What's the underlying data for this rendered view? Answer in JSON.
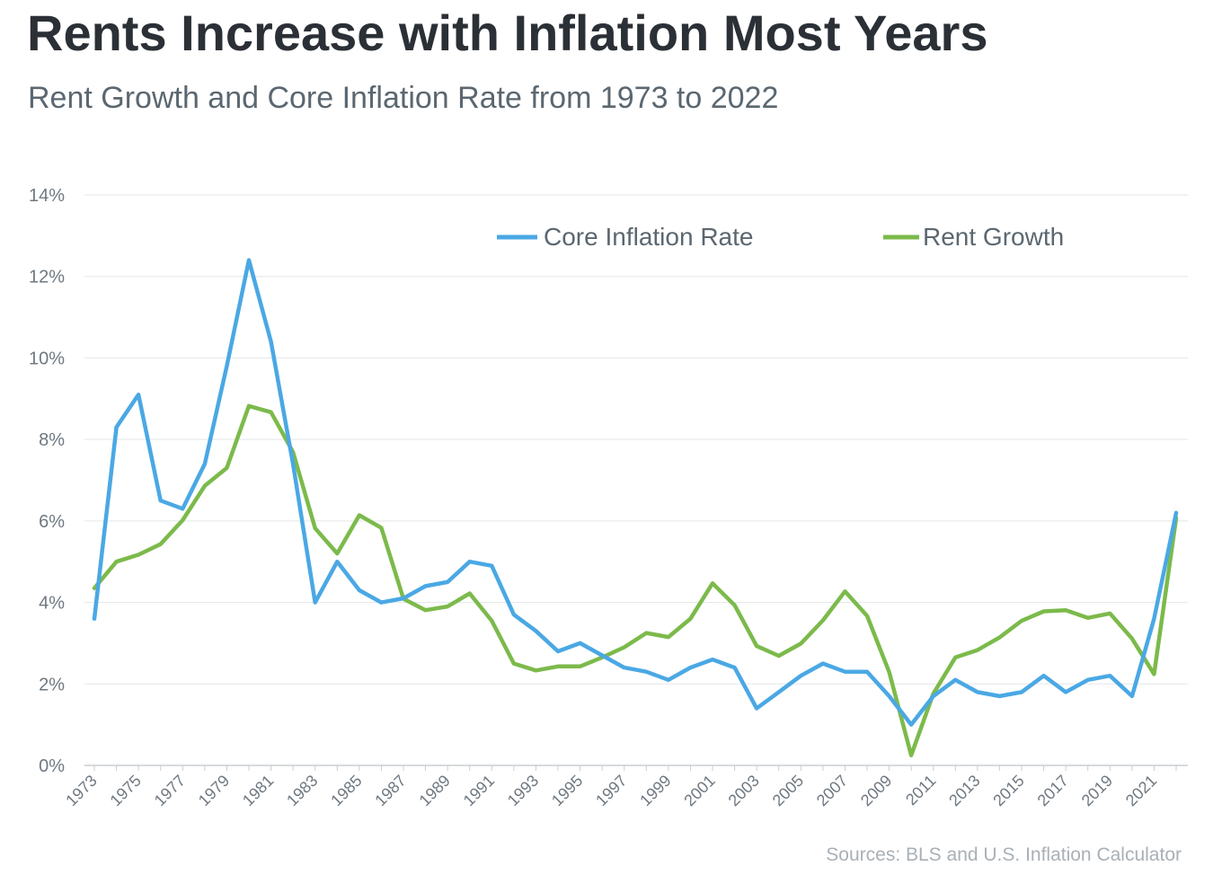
{
  "title": "Rents Increase with Inflation Most Years",
  "subtitle": "Rent Growth and Core Inflation Rate from 1973 to 2022",
  "source": "Sources: BLS and U.S. Inflation Calculator",
  "colors": {
    "core_inflation": "#4aa8e4",
    "rent_growth": "#7cba4b",
    "grid": "#e3e6e8",
    "axis": "#c9cdd1"
  },
  "chart_data": {
    "type": "line",
    "title": "Rents Increase with Inflation Most Years",
    "subtitle": "Rent Growth and Core Inflation Rate from 1973 to 2022",
    "x": [
      1973,
      1974,
      1975,
      1976,
      1977,
      1978,
      1979,
      1980,
      1981,
      1982,
      1983,
      1984,
      1985,
      1986,
      1987,
      1988,
      1989,
      1990,
      1991,
      1992,
      1993,
      1994,
      1995,
      1996,
      1997,
      1998,
      1999,
      2000,
      2001,
      2002,
      2003,
      2004,
      2005,
      2006,
      2007,
      2008,
      2009,
      2010,
      2011,
      2012,
      2013,
      2014,
      2015,
      2016,
      2017,
      2018,
      2019,
      2020,
      2021,
      2022
    ],
    "x_tick_labels": [
      "1973",
      "1975",
      "1977",
      "1979",
      "1981",
      "1983",
      "1985",
      "1987",
      "1989",
      "1991",
      "1993",
      "1995",
      "1997",
      "1999",
      "2001",
      "2003",
      "2005",
      "2007",
      "2009",
      "2011",
      "2013",
      "2015",
      "2017",
      "2019",
      "2021"
    ],
    "y_tick_labels": [
      "0%",
      "2%",
      "4%",
      "6%",
      "8%",
      "10%",
      "12%",
      "14%"
    ],
    "ylim": [
      0,
      14
    ],
    "y_unit": "%",
    "grid": true,
    "legend_position": "top-right",
    "series": [
      {
        "name": "Core Inflation Rate",
        "values": [
          3.6,
          8.3,
          9.1,
          6.5,
          6.3,
          7.4,
          9.8,
          12.4,
          10.4,
          7.4,
          4.0,
          5.0,
          4.3,
          4.0,
          4.1,
          4.4,
          4.5,
          5.0,
          4.9,
          3.7,
          3.3,
          2.8,
          3.0,
          2.7,
          2.4,
          2.3,
          2.1,
          2.4,
          2.6,
          2.4,
          1.4,
          1.8,
          2.2,
          2.5,
          2.3,
          2.3,
          1.7,
          1.0,
          1.7,
          2.1,
          1.8,
          1.7,
          1.8,
          2.2,
          1.8,
          2.1,
          2.2,
          1.7,
          3.6,
          6.2
        ]
      },
      {
        "name": "Rent Growth",
        "values": [
          4.35,
          5.0,
          5.17,
          5.43,
          6.02,
          6.86,
          7.3,
          8.82,
          8.67,
          7.69,
          5.82,
          5.2,
          6.14,
          5.83,
          4.09,
          3.81,
          3.9,
          4.22,
          3.55,
          2.5,
          2.33,
          2.43,
          2.43,
          2.65,
          2.9,
          3.25,
          3.15,
          3.6,
          4.47,
          3.93,
          2.93,
          2.69,
          2.99,
          3.56,
          4.27,
          3.67,
          2.29,
          0.25,
          1.76,
          2.65,
          2.83,
          3.14,
          3.55,
          3.78,
          3.81,
          3.62,
          3.73,
          3.11,
          2.24,
          6.07
        ]
      }
    ]
  }
}
